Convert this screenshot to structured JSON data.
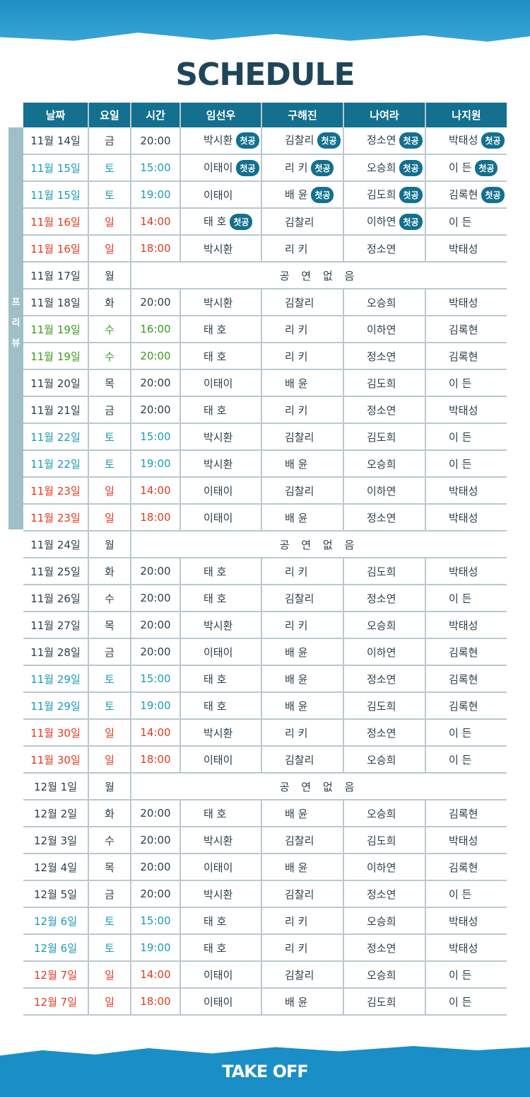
{
  "title": "SCHEDULE",
  "logo": "TAKE OFF",
  "side_label": [
    "프",
    "리",
    "뷰"
  ],
  "badge_label": "첫공",
  "colors": {
    "header": "#13708e",
    "saturday": "#1a9bb5",
    "sunday": "#e03a1e",
    "highlight": "#3a9a1e",
    "text": "#2b3f4a"
  },
  "headers": [
    "날짜",
    "요일",
    "시간",
    "임선우",
    "구해진",
    "나여라",
    "나지원"
  ],
  "no_show_label": "공 연 없 음",
  "rows": [
    {
      "date": "11월 14일",
      "day": "금",
      "time": "20:00",
      "type": "weekday",
      "cast": [
        "박시환",
        "김찰리",
        "정소연",
        "박태성"
      ],
      "first": [
        true,
        true,
        true,
        true
      ]
    },
    {
      "date": "11월 15일",
      "day": "토",
      "time": "15:00",
      "type": "sat",
      "cast": [
        "이태이",
        "리 키",
        "오승희",
        "이 든"
      ],
      "first": [
        true,
        true,
        true,
        true
      ]
    },
    {
      "date": "11월 15일",
      "day": "토",
      "time": "19:00",
      "type": "sat",
      "cast": [
        "이태이",
        "배 윤",
        "김도희",
        "김록현"
      ],
      "first": [
        false,
        true,
        true,
        true
      ]
    },
    {
      "date": "11월 16일",
      "day": "일",
      "time": "14:00",
      "type": "sun",
      "cast": [
        "태 호",
        "김찰리",
        "이하연",
        "이 든"
      ],
      "first": [
        true,
        false,
        true,
        false
      ]
    },
    {
      "date": "11월 16일",
      "day": "일",
      "time": "18:00",
      "type": "sun",
      "cast": [
        "박시환",
        "리 키",
        "정소연",
        "박태성"
      ]
    },
    {
      "date": "11월 17일",
      "day": "월",
      "off": true,
      "type": "weekday"
    },
    {
      "date": "11월 18일",
      "day": "화",
      "time": "20:00",
      "type": "weekday",
      "cast": [
        "박시환",
        "김찰리",
        "오승희",
        "박태성"
      ]
    },
    {
      "date": "11월 19일",
      "day": "수",
      "time": "16:00",
      "type": "grn",
      "cast": [
        "태 호",
        "리 키",
        "이하연",
        "김록현"
      ]
    },
    {
      "date": "11월 19일",
      "day": "수",
      "time": "20:00",
      "type": "grn",
      "cast": [
        "태 호",
        "리 키",
        "정소연",
        "김록현"
      ]
    },
    {
      "date": "11월 20일",
      "day": "목",
      "time": "20:00",
      "type": "weekday",
      "cast": [
        "이태이",
        "배 윤",
        "김도희",
        "이 든"
      ]
    },
    {
      "date": "11월 21일",
      "day": "금",
      "time": "20:00",
      "type": "weekday",
      "cast": [
        "태 호",
        "리 키",
        "정소연",
        "박태성"
      ]
    },
    {
      "date": "11월 22일",
      "day": "토",
      "time": "15:00",
      "type": "sat",
      "cast": [
        "박시환",
        "김찰리",
        "김도희",
        "이 든"
      ]
    },
    {
      "date": "11월 22일",
      "day": "토",
      "time": "19:00",
      "type": "sat",
      "cast": [
        "박시환",
        "배 윤",
        "오승희",
        "이 든"
      ]
    },
    {
      "date": "11월 23일",
      "day": "일",
      "time": "14:00",
      "type": "sun",
      "cast": [
        "이태이",
        "김찰리",
        "이하연",
        "박태성"
      ]
    },
    {
      "date": "11월 23일",
      "day": "일",
      "time": "18:00",
      "type": "sun",
      "cast": [
        "이태이",
        "배 윤",
        "정소연",
        "박태성"
      ]
    },
    {
      "date": "11월 24일",
      "day": "월",
      "off": true,
      "type": "weekday"
    },
    {
      "date": "11월 25일",
      "day": "화",
      "time": "20:00",
      "type": "weekday",
      "cast": [
        "태 호",
        "리 키",
        "김도희",
        "박태성"
      ]
    },
    {
      "date": "11월 26일",
      "day": "수",
      "time": "20:00",
      "type": "weekday",
      "cast": [
        "태 호",
        "김찰리",
        "정소연",
        "이 든"
      ]
    },
    {
      "date": "11월 27일",
      "day": "목",
      "time": "20:00",
      "type": "weekday",
      "cast": [
        "박시환",
        "리 키",
        "오승희",
        "박태성"
      ]
    },
    {
      "date": "11월 28일",
      "day": "금",
      "time": "20:00",
      "type": "weekday",
      "cast": [
        "이태이",
        "배 윤",
        "이하연",
        "김록현"
      ]
    },
    {
      "date": "11월 29일",
      "day": "토",
      "time": "15:00",
      "type": "sat",
      "cast": [
        "태 호",
        "배 윤",
        "정소연",
        "김록현"
      ]
    },
    {
      "date": "11월 29일",
      "day": "토",
      "time": "19:00",
      "type": "sat",
      "cast": [
        "태 호",
        "배 윤",
        "김도희",
        "김록현"
      ]
    },
    {
      "date": "11월 30일",
      "day": "일",
      "time": "14:00",
      "type": "sun",
      "cast": [
        "박시환",
        "리 키",
        "정소연",
        "이 든"
      ]
    },
    {
      "date": "11월 30일",
      "day": "일",
      "time": "18:00",
      "type": "sun",
      "cast": [
        "이태이",
        "김찰리",
        "오승희",
        "이 든"
      ]
    },
    {
      "date": "12월 1일",
      "day": "월",
      "off": true,
      "type": "weekday"
    },
    {
      "date": "12월 2일",
      "day": "화",
      "time": "20:00",
      "type": "weekday",
      "cast": [
        "태 호",
        "배 윤",
        "오승희",
        "김록현"
      ]
    },
    {
      "date": "12월 3일",
      "day": "수",
      "time": "20:00",
      "type": "weekday",
      "cast": [
        "박시환",
        "김찰리",
        "김도희",
        "박태성"
      ]
    },
    {
      "date": "12월 4일",
      "day": "목",
      "time": "20:00",
      "type": "weekday",
      "cast": [
        "이태이",
        "배 윤",
        "이하연",
        "김록현"
      ]
    },
    {
      "date": "12월 5일",
      "day": "금",
      "time": "20:00",
      "type": "weekday",
      "cast": [
        "박시환",
        "김찰리",
        "정소연",
        "이 든"
      ]
    },
    {
      "date": "12월 6일",
      "day": "토",
      "time": "15:00",
      "type": "sat",
      "cast": [
        "태 호",
        "리 키",
        "오승희",
        "박태성"
      ]
    },
    {
      "date": "12월 6일",
      "day": "토",
      "time": "19:00",
      "type": "sat",
      "cast": [
        "태 호",
        "리 키",
        "정소연",
        "박태성"
      ]
    },
    {
      "date": "12월 7일",
      "day": "일",
      "time": "14:00",
      "type": "sun",
      "cast": [
        "이태이",
        "김찰리",
        "오승희",
        "이 든"
      ]
    },
    {
      "date": "12월 7일",
      "day": "일",
      "time": "18:00",
      "type": "sun",
      "cast": [
        "이태이",
        "배 윤",
        "김도희",
        "이 든"
      ]
    }
  ]
}
